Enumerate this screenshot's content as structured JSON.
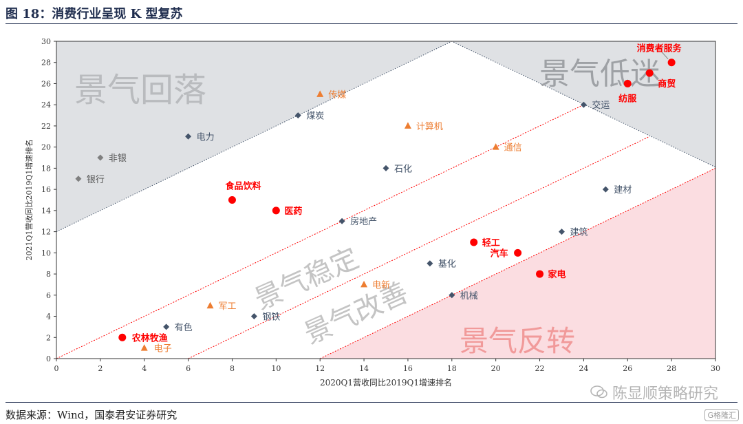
{
  "header": {
    "title": "图 18：消费行业呈现 K 型复苏"
  },
  "footer": {
    "source": "数据来源：Wind，国泰君安证券研究",
    "watermark": "陈显顺策略研究",
    "logo": "G格隆汇"
  },
  "colors": {
    "navy": "#44546a",
    "orange": "#ed7d31",
    "red": "#ff0000",
    "grayZone": "#dfe1e4",
    "pinkZone": "#fbdde1",
    "guide": "#ff0000"
  },
  "chart_data": {
    "type": "scatter",
    "xlabel": "2020Q1营收同比2019Q1增速排名",
    "ylabel": "2021Q1营收同比2019Q1增速排名",
    "xlim": [
      0,
      30
    ],
    "ylim": [
      0,
      30
    ],
    "xticks": [
      0,
      2,
      4,
      6,
      8,
      10,
      12,
      14,
      16,
      18,
      20,
      22,
      24,
      26,
      28,
      30
    ],
    "yticks": [
      0,
      2,
      4,
      6,
      8,
      10,
      12,
      14,
      16,
      18,
      20,
      22,
      24,
      26,
      28,
      30
    ],
    "zones": [
      "景气回落",
      "景气低迷",
      "景气稳定",
      "景气改善",
      "景气反转"
    ],
    "points": [
      {
        "label": "银行",
        "x": 1,
        "y": 17,
        "group": "gray"
      },
      {
        "label": "非银",
        "x": 2,
        "y": 19,
        "group": "gray"
      },
      {
        "label": "电力",
        "x": 6,
        "y": 21,
        "group": "navy"
      },
      {
        "label": "煤炭",
        "x": 11,
        "y": 23,
        "group": "navy"
      },
      {
        "label": "传媒",
        "x": 12,
        "y": 25,
        "group": "orange"
      },
      {
        "label": "计算机",
        "x": 16,
        "y": 22,
        "group": "orange"
      },
      {
        "label": "通信",
        "x": 20,
        "y": 20,
        "group": "orange"
      },
      {
        "label": "石化",
        "x": 15,
        "y": 18,
        "group": "navy"
      },
      {
        "label": "交运",
        "x": 24,
        "y": 24,
        "group": "navy"
      },
      {
        "label": "纺服",
        "x": 26,
        "y": 26,
        "group": "red"
      },
      {
        "label": "商贸",
        "x": 27,
        "y": 27,
        "group": "red"
      },
      {
        "label": "消费者服务",
        "x": 28,
        "y": 28,
        "group": "red"
      },
      {
        "label": "建材",
        "x": 25,
        "y": 16,
        "group": "navy"
      },
      {
        "label": "食品饮料",
        "x": 8,
        "y": 15,
        "group": "red"
      },
      {
        "label": "医药",
        "x": 10,
        "y": 14,
        "group": "red"
      },
      {
        "label": "房地产",
        "x": 13,
        "y": 13,
        "group": "navy"
      },
      {
        "label": "建筑",
        "x": 23,
        "y": 12,
        "group": "navy"
      },
      {
        "label": "轻工",
        "x": 19,
        "y": 11,
        "group": "red"
      },
      {
        "label": "汽车",
        "x": 21,
        "y": 10,
        "group": "red"
      },
      {
        "label": "基化",
        "x": 17,
        "y": 9,
        "group": "navy"
      },
      {
        "label": "家电",
        "x": 22,
        "y": 8,
        "group": "red"
      },
      {
        "label": "电新",
        "x": 14,
        "y": 7,
        "group": "orange"
      },
      {
        "label": "机械",
        "x": 18,
        "y": 6,
        "group": "navy"
      },
      {
        "label": "军工",
        "x": 7,
        "y": 5,
        "group": "orange"
      },
      {
        "label": "钢铁",
        "x": 9,
        "y": 4,
        "group": "navy"
      },
      {
        "label": "有色",
        "x": 5,
        "y": 3,
        "group": "navy"
      },
      {
        "label": "农林牧渔",
        "x": 3,
        "y": 2,
        "group": "red"
      },
      {
        "label": "电子",
        "x": 4,
        "y": 1,
        "group": "orange"
      }
    ]
  }
}
